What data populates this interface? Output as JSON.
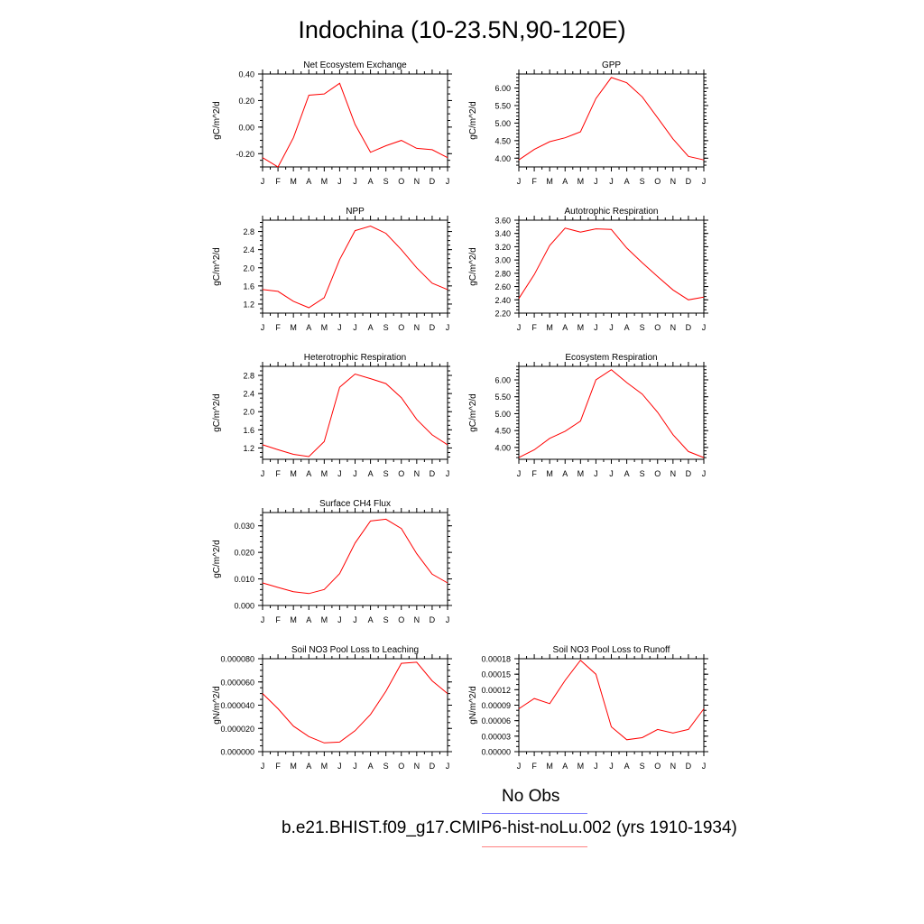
{
  "title": "Indochina (10-23.5N,90-120E)",
  "months": [
    "J",
    "F",
    "M",
    "A",
    "M",
    "J",
    "J",
    "A",
    "S",
    "O",
    "N",
    "D",
    "J"
  ],
  "colors": {
    "model": "#ff0000",
    "obs": "#0000ff",
    "axis": "#000000"
  },
  "legend": {
    "obs_label": "No Obs",
    "model_label": "b.e21.BHIST.f09_g17.CMIP6-hist-noLu.002 (yrs 1910-1934)"
  },
  "chart_data": [
    {
      "type": "line",
      "title": "Net Ecosystem Exchange",
      "ylabel": "gC/m^2/d",
      "ylim": [
        -0.3,
        0.4
      ],
      "yticks": [
        -0.2,
        0.0,
        0.2,
        0.4
      ],
      "ytick_labels": [
        "-0.20",
        "0.00",
        "0.20",
        "0.40"
      ],
      "yminor": 0.05,
      "values": [
        -0.23,
        -0.3,
        -0.08,
        0.24,
        0.25,
        0.33,
        0.02,
        -0.19,
        -0.14,
        -0.1,
        -0.16,
        -0.17,
        -0.23
      ]
    },
    {
      "type": "line",
      "title": "GPP",
      "ylabel": "gC/m^2/d",
      "ylim": [
        3.75,
        6.4
      ],
      "yticks": [
        4.0,
        4.5,
        5.0,
        5.5,
        6.0
      ],
      "ytick_labels": [
        "4.00",
        "4.50",
        "5.00",
        "5.50",
        "6.00"
      ],
      "yminor": 0.1,
      "values": [
        3.95,
        4.25,
        4.47,
        4.58,
        4.75,
        5.7,
        6.3,
        6.15,
        5.75,
        5.15,
        4.55,
        4.05,
        3.95
      ]
    },
    {
      "type": "line",
      "title": "NPP",
      "ylabel": "gC/m^2/d",
      "ylim": [
        1.0,
        3.05
      ],
      "yticks": [
        1.2,
        1.6,
        2.0,
        2.4,
        2.8
      ],
      "ytick_labels": [
        "1.2",
        "1.6",
        "2.0",
        "2.4",
        "2.8"
      ],
      "yminor": 0.1,
      "values": [
        1.52,
        1.48,
        1.26,
        1.12,
        1.34,
        2.18,
        2.82,
        2.92,
        2.76,
        2.4,
        2.0,
        1.66,
        1.52
      ]
    },
    {
      "type": "line",
      "title": "Autotrophic Respiration",
      "ylabel": "gC/m^2/d",
      "ylim": [
        2.2,
        3.6
      ],
      "yticks": [
        2.2,
        2.4,
        2.6,
        2.8,
        3.0,
        3.2,
        3.4,
        3.6
      ],
      "ytick_labels": [
        "2.20",
        "2.40",
        "2.60",
        "2.80",
        "3.00",
        "3.20",
        "3.40",
        "3.60"
      ],
      "yminor": 0.05,
      "values": [
        2.42,
        2.78,
        3.22,
        3.48,
        3.42,
        3.47,
        3.46,
        3.18,
        2.96,
        2.75,
        2.55,
        2.4,
        2.44
      ]
    },
    {
      "type": "line",
      "title": "Heterotrophic Respiration",
      "ylabel": "gC/m^2/d",
      "ylim": [
        0.95,
        3.0
      ],
      "yticks": [
        1.2,
        1.6,
        2.0,
        2.4,
        2.8
      ],
      "ytick_labels": [
        "1.2",
        "1.6",
        "2.0",
        "2.4",
        "2.8"
      ],
      "yminor": 0.1,
      "values": [
        1.27,
        1.16,
        1.06,
        1.01,
        1.34,
        2.54,
        2.83,
        2.73,
        2.62,
        2.31,
        1.83,
        1.49,
        1.27
      ]
    },
    {
      "type": "line",
      "title": "Ecosystem Respiration",
      "ylabel": "gC/m^2/d",
      "ylim": [
        3.65,
        6.4
      ],
      "yticks": [
        4.0,
        4.5,
        5.0,
        5.5,
        6.0
      ],
      "ytick_labels": [
        "4.00",
        "4.50",
        "5.00",
        "5.50",
        "6.00"
      ],
      "yminor": 0.1,
      "values": [
        3.7,
        3.93,
        4.27,
        4.48,
        4.78,
        6.0,
        6.3,
        5.92,
        5.58,
        5.04,
        4.38,
        3.88,
        3.7
      ]
    },
    {
      "type": "line",
      "title": "Surface CH4 Flux",
      "ylabel": "gC/m^2/d",
      "ylim": [
        0.0,
        0.035
      ],
      "yticks": [
        0.0,
        0.01,
        0.02,
        0.03
      ],
      "ytick_labels": [
        "0.000",
        "0.010",
        "0.020",
        "0.030"
      ],
      "yminor": 0.002,
      "values": [
        0.0085,
        0.0068,
        0.0052,
        0.0045,
        0.006,
        0.012,
        0.0235,
        0.0318,
        0.0325,
        0.029,
        0.0195,
        0.0118,
        0.0085
      ]
    },
    {
      "type": "line",
      "title": "Soil NO3 Pool Loss to Leaching",
      "ylabel": "gN/m^2/d",
      "ylim": [
        0.0,
        8e-05
      ],
      "yticks": [
        0.0,
        2e-05,
        4e-05,
        6e-05,
        8e-05
      ],
      "ytick_labels": [
        "0.000000",
        "0.000020",
        "0.000040",
        "0.000060",
        "0.000080"
      ],
      "yminor": 5e-06,
      "values": [
        5e-05,
        3.7e-05,
        2.2e-05,
        1.3e-05,
        7.5e-06,
        8.2e-06,
        1.8e-05,
        3.2e-05,
        5.2e-05,
        7.6e-05,
        7.7e-05,
        6.1e-05,
        5e-05
      ]
    },
    {
      "type": "line",
      "title": "Soil NO3 Pool Loss to Runoff",
      "ylabel": "gN/m^2/d",
      "ylim": [
        0.0,
        0.00018
      ],
      "yticks": [
        0.0,
        3e-05,
        6e-05,
        9e-05,
        0.00012,
        0.00015,
        0.00018
      ],
      "ytick_labels": [
        "0.00000",
        "0.00003",
        "0.00006",
        "0.00009",
        "0.00012",
        "0.00015",
        "0.00018"
      ],
      "yminor": 1e-05,
      "values": [
        8.3e-05,
        0.000103,
        9.3e-05,
        0.000138,
        0.000177,
        0.00015,
        4.8e-05,
        2.3e-05,
        2.7e-05,
        4.3e-05,
        3.6e-05,
        4.3e-05,
        8.3e-05
      ]
    }
  ]
}
